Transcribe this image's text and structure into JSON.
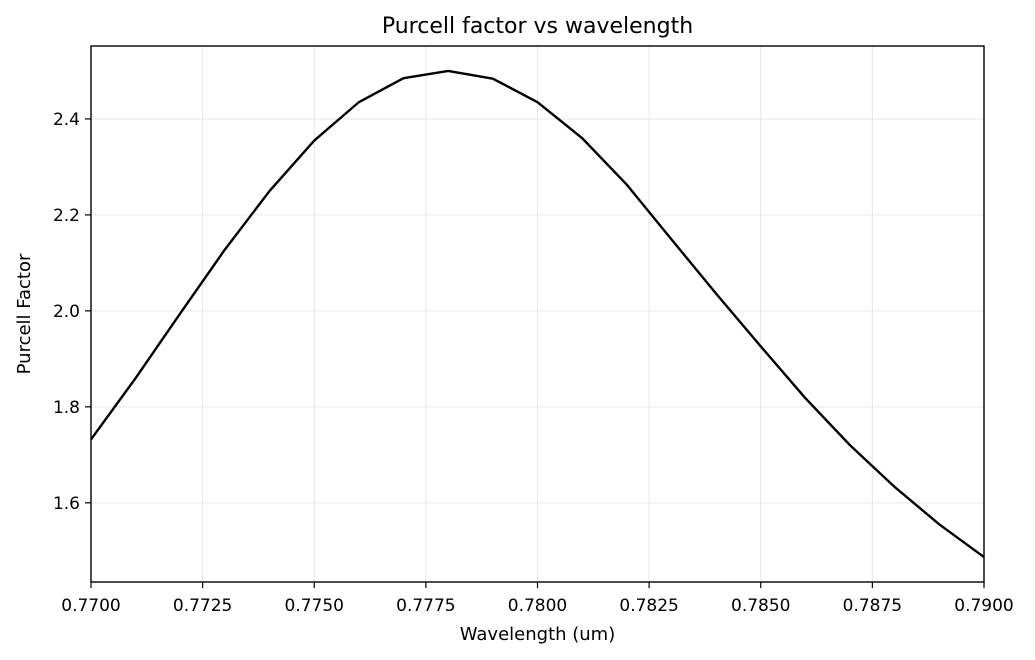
{
  "chart_data": {
    "type": "line",
    "title": "Purcell factor vs wavelength",
    "xlabel": "Wavelength (um)",
    "ylabel": "Purcell Factor",
    "xlim": [
      0.77,
      0.79
    ],
    "ylim": [
      1.435,
      2.552
    ],
    "grid": true,
    "x_ticks": [
      0.77,
      0.7725,
      0.775,
      0.7775,
      0.78,
      0.7825,
      0.785,
      0.7875,
      0.79
    ],
    "x_tick_labels": [
      "0.7700",
      "0.7725",
      "0.7750",
      "0.7775",
      "0.7800",
      "0.7825",
      "0.7850",
      "0.7875",
      "0.7900"
    ],
    "y_ticks": [
      1.6,
      1.8,
      2.0,
      2.2,
      2.4
    ],
    "y_tick_labels": [
      "1.6",
      "1.8",
      "2.0",
      "2.2",
      "2.4"
    ],
    "series": [
      {
        "color": "#000000",
        "x": [
          0.77,
          0.771,
          0.772,
          0.773,
          0.774,
          0.775,
          0.776,
          0.777,
          0.778,
          0.779,
          0.78,
          0.781,
          0.782,
          0.783,
          0.784,
          0.785,
          0.786,
          0.787,
          0.788,
          0.789,
          0.79
        ],
        "y": [
          1.732,
          1.86,
          1.995,
          2.128,
          2.25,
          2.355,
          2.435,
          2.485,
          2.5,
          2.484,
          2.435,
          2.36,
          2.263,
          2.149,
          2.036,
          1.926,
          1.818,
          1.72,
          1.633,
          1.555,
          1.487
        ]
      }
    ]
  }
}
